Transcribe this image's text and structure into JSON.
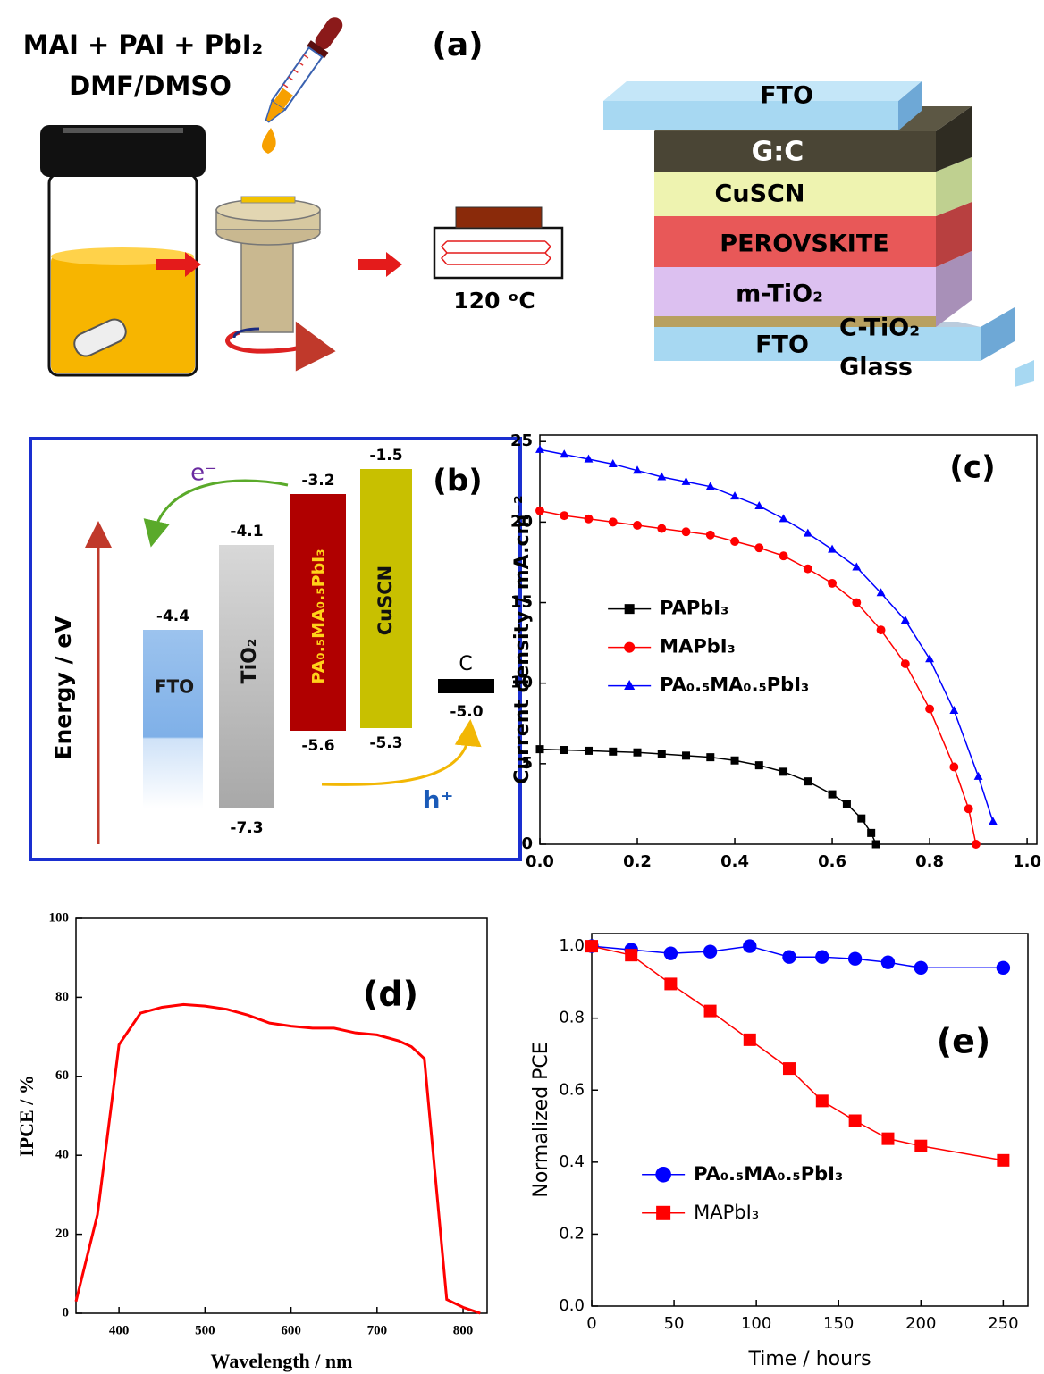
{
  "panel_a": {
    "label": "(a)",
    "solution": "MAI + PAI + PbI₂",
    "solvent": "DMF/DMSO",
    "temperature": "120 ᵒC",
    "layers": [
      "FTO",
      "G:C",
      "CuSCN",
      "PEROVSKITE",
      "m-TiO₂",
      "C-TiO₂",
      "FTO",
      "Glass"
    ]
  },
  "panel_b": {
    "label": "(b)",
    "axis_label": "Energy / eV",
    "electron": "e⁻",
    "hole": "h⁺",
    "materials": [
      {
        "name": "FTO",
        "top": "-4.4"
      },
      {
        "name": "TiO₂",
        "top": "-4.1",
        "bottom": "-7.3"
      },
      {
        "name": "PA₀.₅MA₀.₅PbI₃",
        "top": "-3.2",
        "bottom": "-5.6"
      },
      {
        "name": "CuSCN",
        "top": "-1.5",
        "bottom": "-5.3"
      }
    ],
    "contact": {
      "name": "C",
      "level": "-5.0"
    }
  },
  "chart_data": [
    {
      "type": "line",
      "label": "(c)",
      "y_label": "Current density / mA.cm⁻²",
      "legend": "center left",
      "xlim": [
        0,
        1.02
      ],
      "ylim": [
        0,
        25.4
      ],
      "xticks": [
        {
          "value": 0,
          "label": "0.0"
        },
        0.2,
        0.4,
        0.6,
        0.8,
        {
          "value": 1,
          "label": "1.0"
        }
      ],
      "yticks": [
        0,
        5,
        10,
        15,
        20,
        25
      ],
      "series": [
        {
          "name": "PAPbI₃",
          "color": "#000000",
          "marker": "square",
          "x": [
            0,
            0.05,
            0.1,
            0.15,
            0.2,
            0.25,
            0.3,
            0.35,
            0.4,
            0.45,
            0.5,
            0.55,
            0.6,
            0.63,
            0.66,
            0.68,
            0.69
          ],
          "values": [
            5.9,
            5.85,
            5.8,
            5.75,
            5.7,
            5.6,
            5.5,
            5.4,
            5.2,
            4.9,
            4.5,
            3.9,
            3.1,
            2.5,
            1.6,
            0.7,
            0
          ]
        },
        {
          "name": "MAPbI₃",
          "color": "#ff0000",
          "marker": "circle",
          "x": [
            0,
            0.05,
            0.1,
            0.15,
            0.2,
            0.25,
            0.3,
            0.35,
            0.4,
            0.45,
            0.5,
            0.55,
            0.6,
            0.65,
            0.7,
            0.75,
            0.8,
            0.85,
            0.88,
            0.895
          ],
          "values": [
            20.7,
            20.4,
            20.2,
            20.0,
            19.8,
            19.6,
            19.4,
            19.2,
            18.8,
            18.4,
            17.9,
            17.1,
            16.2,
            15.0,
            13.3,
            11.2,
            8.4,
            4.8,
            2.2,
            0
          ]
        },
        {
          "name": "PA₀.₅MA₀.₅PbI₃",
          "color": "#0000ff",
          "marker": "triangle",
          "x": [
            0,
            0.05,
            0.1,
            0.15,
            0.2,
            0.25,
            0.3,
            0.35,
            0.4,
            0.45,
            0.5,
            0.55,
            0.6,
            0.65,
            0.7,
            0.75,
            0.8,
            0.85,
            0.9,
            0.93
          ],
          "values": [
            24.5,
            24.2,
            23.9,
            23.6,
            23.2,
            22.8,
            22.5,
            22.2,
            21.6,
            21.0,
            20.2,
            19.3,
            18.3,
            17.2,
            15.6,
            13.9,
            11.5,
            8.3,
            4.2,
            1.4
          ]
        }
      ]
    },
    {
      "type": "line",
      "label": "(d)",
      "x_label": "Wavelength / nm",
      "y_label": "IPCE / %",
      "xlim": [
        350,
        828
      ],
      "ylim": [
        0,
        100
      ],
      "xticks": [
        400,
        500,
        600,
        700,
        800
      ],
      "yticks": [
        0,
        20,
        40,
        60,
        80,
        100
      ],
      "series": [
        {
          "color": "#ff0000",
          "marker": "none",
          "x": [
            350,
            375,
            400,
            425,
            450,
            475,
            500,
            525,
            550,
            575,
            600,
            625,
            650,
            675,
            700,
            725,
            740,
            755,
            781,
            800,
            820
          ],
          "values": [
            3,
            25,
            68,
            76,
            77.5,
            78.2,
            77.8,
            77,
            75.5,
            73.5,
            72.7,
            72.2,
            72.2,
            71,
            70.5,
            69,
            67.5,
            64.5,
            3.5,
            1.5,
            0
          ]
        }
      ]
    },
    {
      "type": "line",
      "label": "(e)",
      "x_label": "Time / hours",
      "y_label": "Normalized PCE",
      "legend": "lower left",
      "xlim": [
        0,
        265
      ],
      "ylim": [
        0,
        1.035
      ],
      "xticks": [
        0,
        50,
        100,
        150,
        200,
        250
      ],
      "yticks": [
        {
          "value": 0,
          "label": "0.0"
        },
        0.2,
        0.4,
        0.6,
        0.8,
        {
          "value": 1,
          "label": "1.0"
        }
      ],
      "series": [
        {
          "name": "PA₀.₅MA₀.₅PbI₃",
          "color": "#0000ff",
          "marker": "circle",
          "x": [
            0,
            24,
            48,
            72,
            96,
            120,
            140,
            160,
            180,
            200,
            250
          ],
          "values": [
            1.0,
            0.99,
            0.98,
            0.985,
            1.0,
            0.97,
            0.97,
            0.965,
            0.955,
            0.94,
            0.94
          ]
        },
        {
          "name": "MAPbI₃",
          "color": "#ff0000",
          "marker": "square",
          "x": [
            0,
            24,
            48,
            72,
            96,
            120,
            140,
            160,
            180,
            200,
            250
          ],
          "values": [
            1.0,
            0.975,
            0.895,
            0.82,
            0.74,
            0.66,
            0.57,
            0.515,
            0.465,
            0.445,
            0.405
          ]
        }
      ]
    }
  ]
}
